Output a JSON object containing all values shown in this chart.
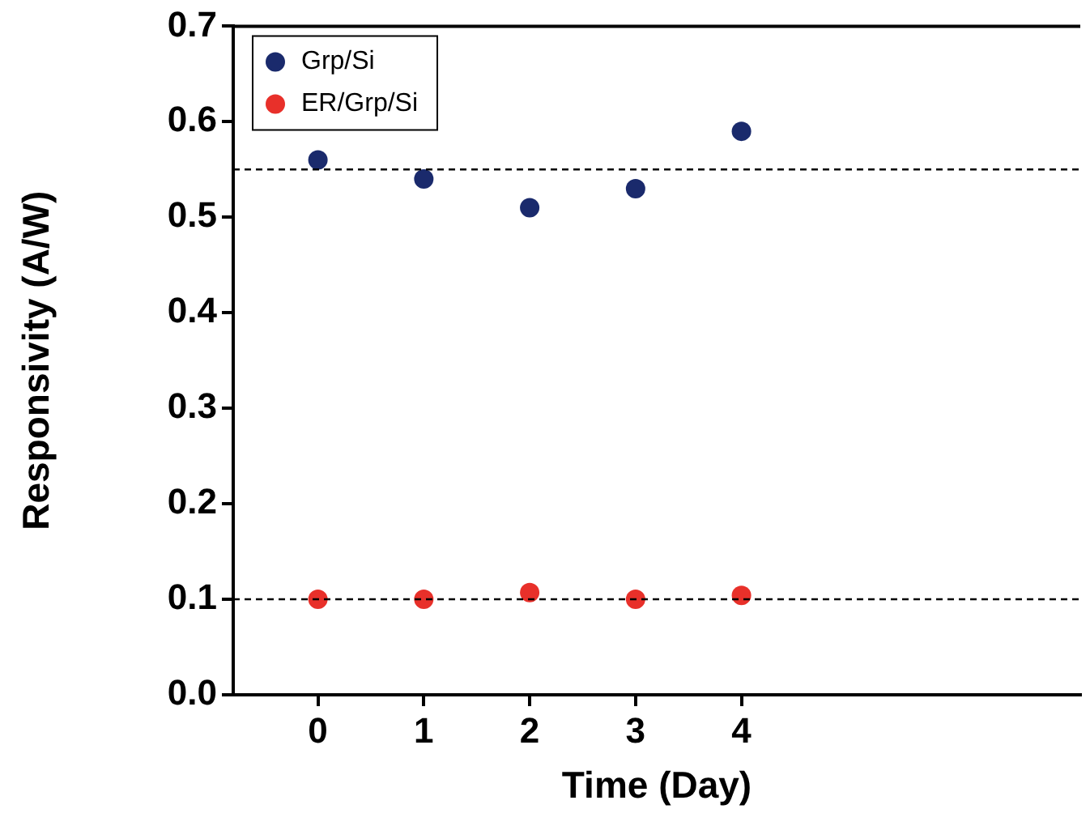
{
  "chart_data": {
    "type": "scatter",
    "xlabel": "Time (Day)",
    "ylabel": "Responsivity (A/W)",
    "x": [
      0,
      1,
      2,
      3,
      4
    ],
    "series": [
      {
        "name": "Grp/Si",
        "color": "#1a2a6c",
        "values": [
          0.56,
          0.54,
          0.51,
          0.53,
          0.59
        ]
      },
      {
        "name": "ER/Grp/Si",
        "color": "#e8302a",
        "values": [
          0.1,
          0.1,
          0.107,
          0.1,
          0.104
        ]
      }
    ],
    "xlim": [
      -0.8,
      7.2
    ],
    "xticks": [
      0,
      1,
      2,
      3,
      4
    ],
    "ylim": [
      0,
      0.7
    ],
    "yticks": [
      {
        "value": 0,
        "label": "0.0"
      },
      0.1,
      0.2,
      0.3,
      0.4,
      0.5,
      0.6,
      0.7
    ],
    "ref_lines": [
      {
        "axis": "y",
        "value": 0.55,
        "line_style": "dashed"
      },
      {
        "axis": "y",
        "value": 0.1,
        "line_style": "dashed"
      }
    ],
    "legend": "top left",
    "marker": "circle",
    "grid": false
  }
}
